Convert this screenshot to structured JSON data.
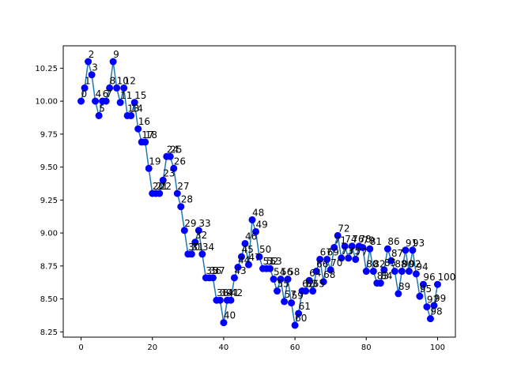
{
  "chart_data": {
    "type": "line",
    "title": "",
    "xlabel": "",
    "ylabel": "",
    "xlim": [
      -5,
      105
    ],
    "ylim": [
      8.21,
      10.42
    ],
    "grid": false,
    "legend": "none",
    "x_ticks": [
      0,
      20,
      40,
      60,
      80,
      100
    ],
    "x_tick_labels": [
      "0",
      "20",
      "40",
      "60",
      "80",
      "100"
    ],
    "y_ticks": [
      8.25,
      8.5,
      8.75,
      9.0,
      9.25,
      9.5,
      9.75,
      10.0,
      10.25
    ],
    "y_tick_labels": [
      "8.25",
      "8.50",
      "8.75",
      "9.00",
      "9.25",
      "9.50",
      "9.75",
      "10.00",
      "10.25"
    ],
    "colors": {
      "line": "#1f77b4",
      "marker": "#0000ff",
      "axes": "#000000"
    },
    "series": [
      {
        "x": [
          0,
          1,
          2,
          3,
          4,
          5,
          6,
          7,
          8,
          9,
          10,
          11,
          12,
          13,
          14,
          15,
          16,
          17,
          18,
          19,
          20,
          21,
          22,
          23,
          24,
          25,
          26,
          27,
          28,
          29,
          30,
          31,
          32,
          33,
          34,
          35,
          36,
          37,
          38,
          39,
          40,
          41,
          42,
          43,
          44,
          45,
          46,
          47,
          48,
          49,
          50,
          51,
          52,
          53,
          54,
          55,
          56,
          57,
          58,
          59,
          60,
          61,
          62,
          63,
          64,
          65,
          66,
          67,
          68,
          69,
          70,
          71,
          72,
          73,
          74,
          75,
          76,
          77,
          78,
          79,
          80,
          81,
          82,
          83,
          84,
          85,
          86,
          87,
          88,
          89,
          90,
          91,
          92,
          93,
          94,
          95,
          96,
          97,
          98,
          99,
          100
        ],
        "y": [
          10.0,
          10.1,
          10.3,
          10.2,
          10.0,
          9.89,
          10.0,
          10.0,
          10.1,
          10.3,
          10.1,
          9.99,
          10.1,
          9.89,
          9.89,
          9.99,
          9.79,
          9.69,
          9.69,
          9.49,
          9.3,
          9.3,
          9.3,
          9.4,
          9.58,
          9.58,
          9.49,
          9.3,
          9.2,
          9.02,
          8.84,
          8.84,
          8.93,
          9.02,
          8.84,
          8.66,
          8.66,
          8.66,
          8.49,
          8.49,
          8.32,
          8.49,
          8.49,
          8.66,
          8.74,
          8.82,
          8.92,
          8.76,
          9.1,
          9.01,
          8.82,
          8.73,
          8.73,
          8.73,
          8.65,
          8.56,
          8.65,
          8.48,
          8.65,
          8.47,
          8.3,
          8.39,
          8.56,
          8.56,
          8.64,
          8.56,
          8.71,
          8.8,
          8.63,
          8.8,
          8.72,
          8.89,
          8.98,
          8.81,
          8.9,
          8.81,
          8.9,
          8.8,
          8.9,
          8.89,
          8.71,
          8.88,
          8.71,
          8.62,
          8.62,
          8.72,
          8.88,
          8.79,
          8.71,
          8.54,
          8.71,
          8.87,
          8.71,
          8.87,
          8.69,
          8.52,
          8.61,
          8.44,
          8.35,
          8.45,
          8.61
        ]
      }
    ],
    "data_labels": [
      "0",
      "1",
      "2",
      "3",
      "4",
      "5",
      "6",
      "7",
      "8",
      "9",
      "10",
      "11",
      "12",
      "13",
      "14",
      "15",
      "16",
      "17",
      "18",
      "19",
      "20",
      "21",
      "22",
      "23",
      "24",
      "25",
      "26",
      "27",
      "28",
      "29",
      "30",
      "31",
      "32",
      "33",
      "34",
      "35",
      "36",
      "37",
      "38",
      "39",
      "40",
      "41",
      "42",
      "43",
      "44",
      "45",
      "46",
      "47",
      "48",
      "49",
      "50",
      "51",
      "52",
      "53",
      "54",
      "55",
      "56",
      "57",
      "58",
      "59",
      "60",
      "61",
      "62",
      "63",
      "64",
      "65",
      "66",
      "67",
      "68",
      "69",
      "70",
      "71",
      "72",
      "73",
      "74",
      "75",
      "76",
      "77",
      "78",
      "79",
      "80",
      "81",
      "82",
      "83",
      "84",
      "85",
      "86",
      "87",
      "88",
      "89",
      "90",
      "91",
      "92",
      "93",
      "94",
      "95",
      "96",
      "97",
      "98",
      "99",
      "100"
    ]
  }
}
